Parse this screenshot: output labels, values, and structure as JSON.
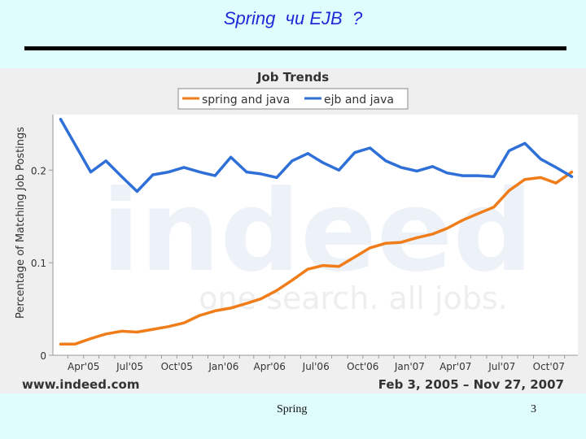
{
  "slide": {
    "title": "Spring  чи EJB  ?",
    "footer_text": "Spring",
    "page_number": "3"
  },
  "colors": {
    "background": "#dffdfd",
    "title": "#1e2ad8",
    "spring_series": "#f07d1a",
    "ejb_series": "#2f6fd8"
  },
  "chart_data": {
    "type": "line",
    "title": "Job Trends",
    "ylabel": "Percentage of Matching Job Postings",
    "xlabel": "",
    "ylim": [
      0,
      0.26
    ],
    "y_ticks": [
      0,
      0.1,
      0.2
    ],
    "y_tick_labels": [
      "0",
      "0.1",
      "0.2"
    ],
    "x_tick_labels": [
      "Apr'05",
      "Jul'05",
      "Oct'05",
      "Jan'06",
      "Apr'06",
      "Jul'06",
      "Oct'06",
      "Jan'07",
      "Apr'07",
      "Jul'07",
      "Oct'07"
    ],
    "legend_position": "top-center",
    "grid": false,
    "watermark_logo": "indeed",
    "watermark_tagline": "one search. all jobs.",
    "source_label": "www.indeed.com",
    "date_range_label": "Feb 3, 2005 – Nov 27, 2007",
    "series": [
      {
        "name": "spring and java",
        "color": "#f07d1a",
        "x": [
          "2005-02",
          "2005-03",
          "2005-04",
          "2005-05",
          "2005-06",
          "2005-07",
          "2005-08",
          "2005-09",
          "2005-10",
          "2005-11",
          "2005-12",
          "2006-01",
          "2006-02",
          "2006-03",
          "2006-04",
          "2006-05",
          "2006-06",
          "2006-07",
          "2006-08",
          "2006-09",
          "2006-10",
          "2006-11",
          "2006-12",
          "2007-01",
          "2007-02",
          "2007-03",
          "2007-04",
          "2007-05",
          "2007-06",
          "2007-07",
          "2007-08",
          "2007-09",
          "2007-10",
          "2007-11"
        ],
        "values": [
          0.012,
          0.012,
          0.018,
          0.023,
          0.026,
          0.025,
          0.028,
          0.031,
          0.035,
          0.043,
          0.048,
          0.051,
          0.056,
          0.061,
          0.07,
          0.081,
          0.093,
          0.097,
          0.096,
          0.106,
          0.116,
          0.121,
          0.122,
          0.127,
          0.131,
          0.137,
          0.146,
          0.153,
          0.16,
          0.178,
          0.19,
          0.192,
          0.186,
          0.198
        ]
      },
      {
        "name": "ejb and java",
        "color": "#2f6fd8",
        "x": [
          "2005-02",
          "2005-03",
          "2005-04",
          "2005-05",
          "2005-06",
          "2005-07",
          "2005-08",
          "2005-09",
          "2005-10",
          "2005-11",
          "2005-12",
          "2006-01",
          "2006-02",
          "2006-03",
          "2006-04",
          "2006-05",
          "2006-06",
          "2006-07",
          "2006-08",
          "2006-09",
          "2006-10",
          "2006-11",
          "2006-12",
          "2007-01",
          "2007-02",
          "2007-03",
          "2007-04",
          "2007-05",
          "2007-06",
          "2007-07",
          "2007-08",
          "2007-09",
          "2007-10",
          "2007-11"
        ],
        "values": [
          0.255,
          0.228,
          0.198,
          0.21,
          0.193,
          0.177,
          0.195,
          0.198,
          0.203,
          0.198,
          0.194,
          0.214,
          0.198,
          0.196,
          0.192,
          0.21,
          0.218,
          0.208,
          0.2,
          0.219,
          0.224,
          0.21,
          0.203,
          0.199,
          0.204,
          0.197,
          0.194,
          0.194,
          0.193,
          0.221,
          0.229,
          0.212,
          0.203,
          0.193
        ]
      }
    ]
  }
}
